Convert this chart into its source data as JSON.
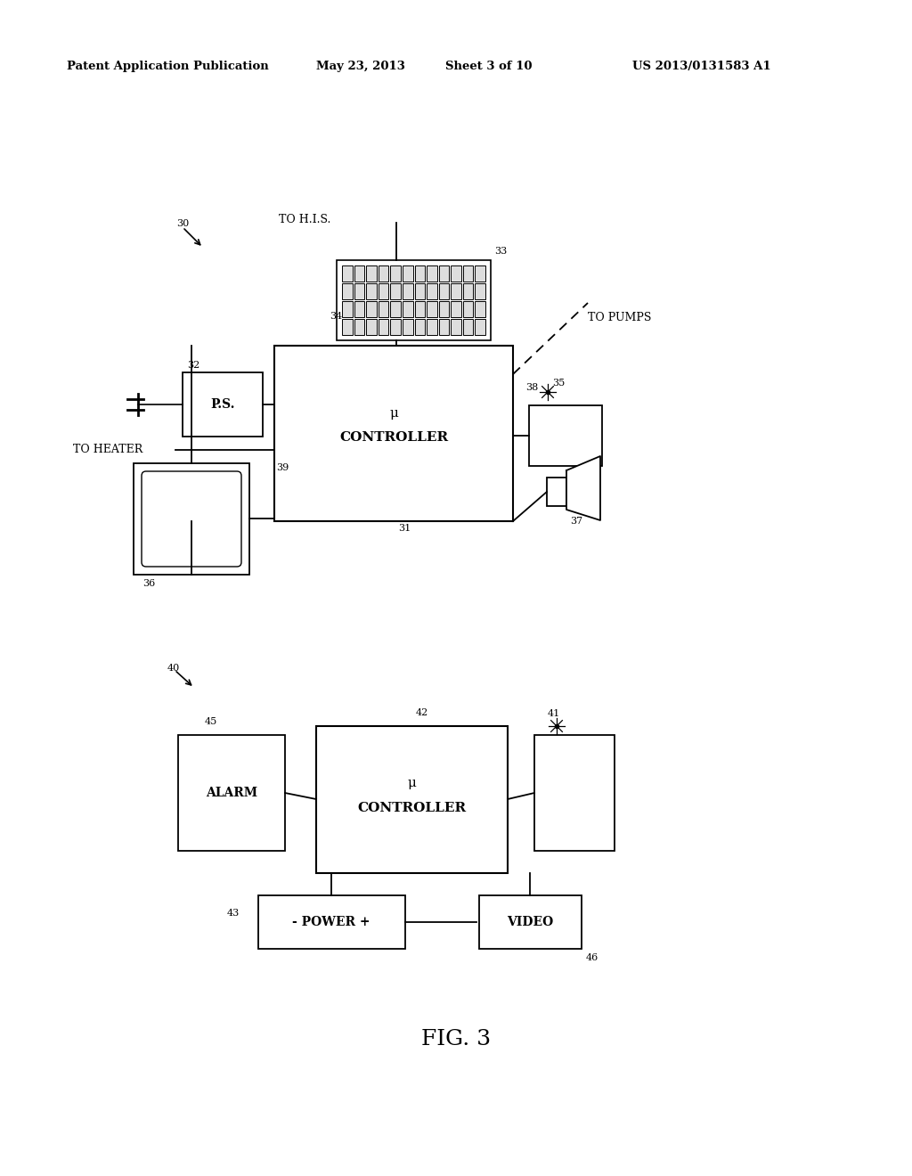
{
  "bg_color": "#ffffff",
  "header_text": "Patent Application Publication",
  "header_date": "May 23, 2013",
  "header_sheet": "Sheet 3 of 10",
  "header_patent": "US 2013/0131583 A1",
  "fig_label": "FIG. 3"
}
